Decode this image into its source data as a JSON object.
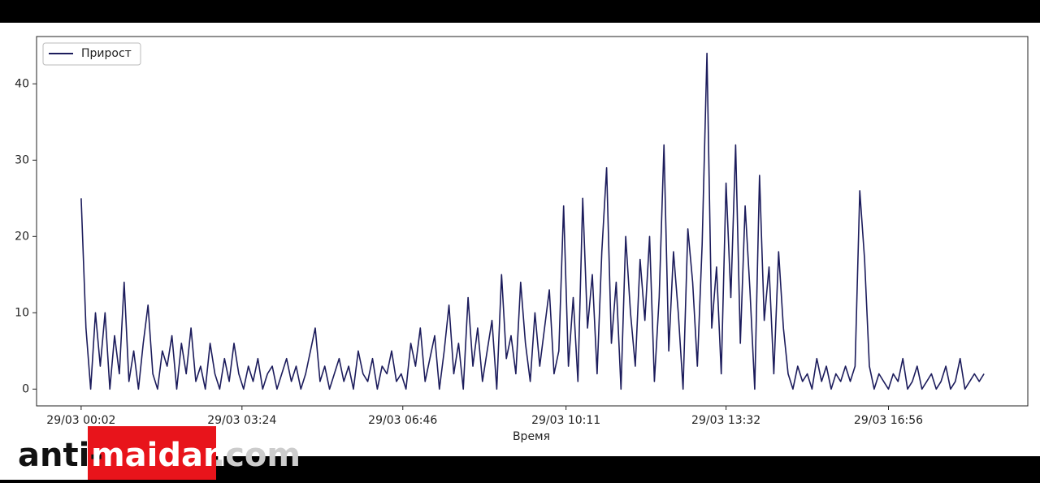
{
  "chart_data": {
    "type": "line",
    "xlabel": "Время",
    "legend": "upper left",
    "series": [
      {
        "name": "Прирост",
        "color": "#1c1c5c",
        "values": [
          25,
          8,
          0,
          10,
          3,
          10,
          0,
          7,
          2,
          14,
          1,
          5,
          0,
          6,
          11,
          2,
          0,
          5,
          3,
          7,
          0,
          6,
          2,
          8,
          1,
          3,
          0,
          6,
          2,
          0,
          4,
          1,
          6,
          2,
          0,
          3,
          1,
          4,
          0,
          2,
          3,
          0,
          2,
          4,
          1,
          3,
          0,
          2,
          5,
          8,
          1,
          3,
          0,
          2,
          4,
          1,
          3,
          0,
          5,
          2,
          1,
          4,
          0,
          3,
          2,
          5,
          1,
          2,
          0,
          6,
          3,
          8,
          1,
          4,
          7,
          0,
          5,
          11,
          2,
          6,
          0,
          12,
          3,
          8,
          1,
          5,
          9,
          0,
          15,
          4,
          7,
          2,
          14,
          6,
          1,
          10,
          3,
          8,
          13,
          2,
          5,
          24,
          3,
          12,
          1,
          25,
          8,
          15,
          2,
          18,
          29,
          6,
          14,
          0,
          20,
          10,
          3,
          17,
          9,
          20,
          1,
          12,
          32,
          5,
          18,
          10,
          0,
          21,
          14,
          3,
          19,
          44,
          8,
          16,
          2,
          27,
          12,
          32,
          6,
          24,
          13,
          0,
          28,
          9,
          16,
          2,
          18,
          8,
          2,
          0,
          3,
          1,
          2,
          0,
          4,
          1,
          3,
          0,
          2,
          1,
          3,
          1,
          3,
          26,
          17,
          3,
          0,
          2,
          1,
          0,
          2,
          1,
          4,
          0,
          1,
          3,
          0,
          1,
          2,
          0,
          1,
          3,
          0,
          1,
          4,
          0,
          1,
          2,
          1,
          2
        ]
      }
    ],
    "x": [
      2,
      8,
      14,
      20,
      26,
      32,
      38,
      44,
      50,
      56,
      62,
      68,
      74,
      80,
      86,
      92,
      98,
      104,
      110,
      116,
      122,
      128,
      134,
      140,
      146,
      152,
      158,
      164,
      170,
      176,
      182,
      188,
      194,
      200,
      206,
      212,
      218,
      224,
      230,
      236,
      242,
      248,
      254,
      260,
      266,
      272,
      278,
      284,
      290,
      296,
      302,
      308,
      314,
      320,
      326,
      332,
      338,
      344,
      350,
      356,
      362,
      368,
      374,
      380,
      386,
      392,
      398,
      404,
      410,
      416,
      422,
      428,
      434,
      440,
      446,
      452,
      458,
      464,
      470,
      476,
      482,
      488,
      494,
      500,
      506,
      512,
      518,
      524,
      530,
      536,
      542,
      548,
      554,
      560,
      566,
      572,
      578,
      584,
      590,
      596,
      602,
      608,
      614,
      620,
      626,
      632,
      638,
      644,
      650,
      656,
      662,
      668,
      674,
      680,
      686,
      692,
      698,
      704,
      710,
      716,
      722,
      728,
      734,
      740,
      746,
      752,
      758,
      764,
      770,
      776,
      782,
      788,
      794,
      800,
      806,
      812,
      818,
      824,
      830,
      836,
      842,
      848,
      854,
      860,
      866,
      872,
      878,
      884,
      890,
      896,
      902,
      908,
      914,
      920,
      926,
      932,
      938,
      944,
      950,
      956,
      962,
      968,
      974,
      980,
      986,
      992,
      998,
      1004,
      1010,
      1016,
      1022,
      1028,
      1034,
      1040,
      1046,
      1052,
      1058,
      1064,
      1070,
      1076,
      1082,
      1088,
      1094,
      1100,
      1106,
      1112,
      1118,
      1124,
      1130,
      1136
    ],
    "xlim": [
      -54,
      1191
    ],
    "xticks": [
      {
        "value": 2,
        "label": "29/03 00:02"
      },
      {
        "value": 204,
        "label": "29/03 03:24"
      },
      {
        "value": 406,
        "label": "29/03 06:46"
      },
      {
        "value": 611,
        "label": "29/03 10:11"
      },
      {
        "value": 812,
        "label": "29/03 13:32"
      },
      {
        "value": 1016,
        "label": "29/03 16:56"
      }
    ],
    "ylim": [
      -2.2,
      46.2
    ],
    "yticks": [
      0,
      10,
      20,
      30,
      40
    ]
  },
  "watermark": {
    "prefix": "anti-",
    "highlight": "maidan",
    "suffix": ".com"
  }
}
